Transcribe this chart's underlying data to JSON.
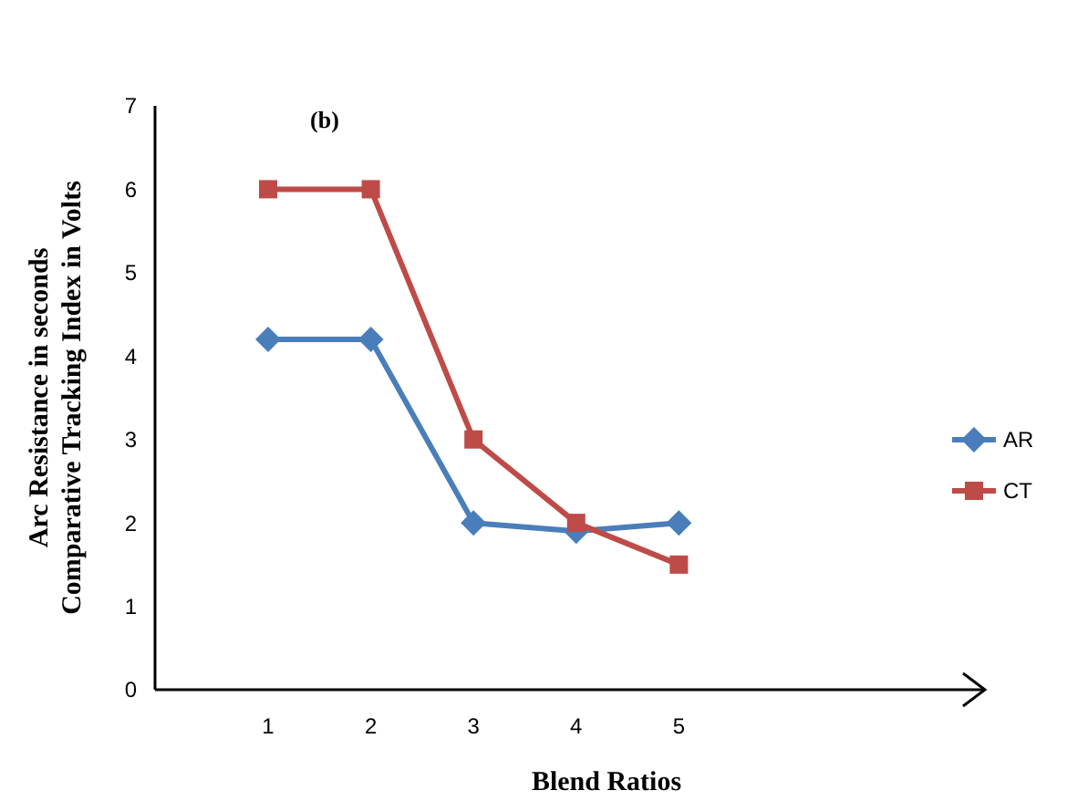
{
  "chart_data": {
    "type": "line",
    "xlabel": "Blend Ratios",
    "ylabel": "Arc Resistance  in seconds\nComparative  Tracking Index in Volts",
    "annotations": [
      "(b)"
    ],
    "categories": [
      "1",
      "2",
      "3",
      "4",
      "5"
    ],
    "series": [
      {
        "name": "AR",
        "color": "#4a7ebb",
        "marker": "diamond",
        "values": [
          4.2,
          4.2,
          2,
          1.9,
          2
        ]
      },
      {
        "name": "CT",
        "color": "#be4b48",
        "marker": "square",
        "values": [
          6,
          6,
          3,
          2,
          1.5
        ]
      }
    ],
    "ylim": [
      0,
      7
    ],
    "yticks": [
      0,
      1,
      2,
      3,
      4,
      5,
      6,
      7
    ],
    "grid": false,
    "legend": "right"
  }
}
